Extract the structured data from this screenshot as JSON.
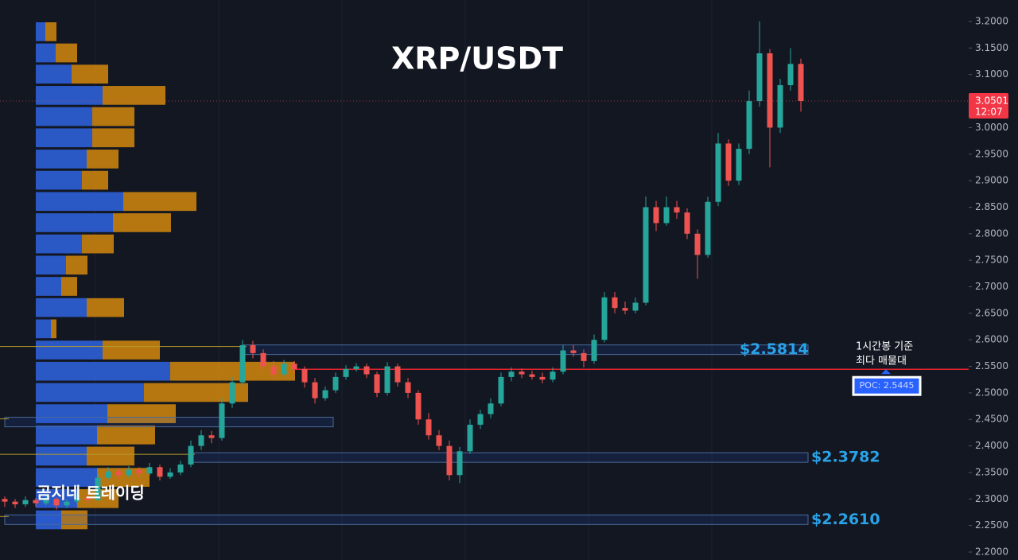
{
  "chart_data": {
    "type": "candlestick",
    "title": "XRP/USDT",
    "watermark": "곰지네 트레이딩",
    "up_color": "#26a69a",
    "down_color": "#ef5350",
    "ylim": [
      2.185,
      3.2405
    ],
    "yticks": [
      {
        "value": 3.2,
        "label": "3.2000"
      },
      {
        "value": 3.15,
        "label": "3.1500"
      },
      {
        "value": 3.1,
        "label": "3.1000"
      },
      {
        "value": 3.05,
        "label": "3.0500"
      },
      {
        "value": 3.0,
        "label": "3.0000"
      },
      {
        "value": 2.95,
        "label": "2.9500"
      },
      {
        "value": 2.9,
        "label": "2.9000"
      },
      {
        "value": 2.85,
        "label": "2.8500"
      },
      {
        "value": 2.8,
        "label": "2.8000"
      },
      {
        "value": 2.75,
        "label": "2.7500"
      },
      {
        "value": 2.7,
        "label": "2.7000"
      },
      {
        "value": 2.65,
        "label": "2.6500"
      },
      {
        "value": 2.6,
        "label": "2.6000"
      },
      {
        "value": 2.55,
        "label": "2.5500"
      },
      {
        "value": 2.5,
        "label": "2.5000"
      },
      {
        "value": 2.45,
        "label": "2.4500"
      },
      {
        "value": 2.4,
        "label": "2.4000"
      },
      {
        "value": 2.35,
        "label": "2.3500"
      },
      {
        "value": 2.3,
        "label": "2.3000"
      },
      {
        "value": 2.25,
        "label": "2.2500"
      },
      {
        "value": 2.2,
        "label": "2.2000"
      }
    ],
    "ohlc": [
      [
        2.3,
        2.305,
        2.285,
        2.295
      ],
      [
        2.295,
        2.3,
        2.283,
        2.29
      ],
      [
        2.29,
        2.305,
        2.285,
        2.298
      ],
      [
        2.298,
        2.302,
        2.285,
        2.292
      ],
      [
        2.292,
        2.308,
        2.288,
        2.3
      ],
      [
        2.3,
        2.303,
        2.28,
        2.288
      ],
      [
        2.288,
        2.3,
        2.283,
        2.295
      ],
      [
        2.295,
        2.31,
        2.29,
        2.302
      ],
      [
        2.302,
        2.31,
        2.29,
        2.298
      ],
      [
        2.298,
        2.348,
        2.295,
        2.34
      ],
      [
        2.34,
        2.36,
        2.335,
        2.352
      ],
      [
        2.352,
        2.358,
        2.338,
        2.345
      ],
      [
        2.345,
        2.362,
        2.34,
        2.355
      ],
      [
        2.355,
        2.36,
        2.34,
        2.348
      ],
      [
        2.348,
        2.368,
        2.344,
        2.36
      ],
      [
        2.36,
        2.365,
        2.335,
        2.342
      ],
      [
        2.342,
        2.358,
        2.338,
        2.35
      ],
      [
        2.35,
        2.372,
        2.345,
        2.365
      ],
      [
        2.365,
        2.41,
        2.36,
        2.4
      ],
      [
        2.4,
        2.43,
        2.392,
        2.42
      ],
      [
        2.42,
        2.428,
        2.405,
        2.415
      ],
      [
        2.415,
        2.49,
        2.41,
        2.48
      ],
      [
        2.48,
        2.53,
        2.472,
        2.52
      ],
      [
        2.52,
        2.6,
        2.515,
        2.59
      ],
      [
        2.59,
        2.598,
        2.565,
        2.575
      ],
      [
        2.575,
        2.582,
        2.54,
        2.55
      ],
      [
        2.55,
        2.56,
        2.525,
        2.535
      ],
      [
        2.535,
        2.562,
        2.53,
        2.555
      ],
      [
        2.555,
        2.56,
        2.538,
        2.545
      ],
      [
        2.545,
        2.55,
        2.51,
        2.52
      ],
      [
        2.52,
        2.528,
        2.48,
        2.49
      ],
      [
        2.49,
        2.512,
        2.485,
        2.505
      ],
      [
        2.505,
        2.538,
        2.5,
        2.53
      ],
      [
        2.53,
        2.552,
        2.525,
        2.545
      ],
      [
        2.545,
        2.556,
        2.54,
        2.55
      ],
      [
        2.55,
        2.555,
        2.528,
        2.535
      ],
      [
        2.535,
        2.54,
        2.492,
        2.5
      ],
      [
        2.5,
        2.558,
        2.495,
        2.55
      ],
      [
        2.55,
        2.555,
        2.512,
        2.52
      ],
      [
        2.52,
        2.528,
        2.49,
        2.5
      ],
      [
        2.5,
        2.505,
        2.44,
        2.45
      ],
      [
        2.45,
        2.462,
        2.412,
        2.42
      ],
      [
        2.42,
        2.43,
        2.392,
        2.4
      ],
      [
        2.4,
        2.41,
        2.335,
        2.345
      ],
      [
        2.345,
        2.398,
        2.33,
        2.39
      ],
      [
        2.39,
        2.45,
        2.385,
        2.44
      ],
      [
        2.44,
        2.468,
        2.432,
        2.46
      ],
      [
        2.46,
        2.49,
        2.452,
        2.48
      ],
      [
        2.48,
        2.538,
        2.475,
        2.53
      ],
      [
        2.53,
        2.548,
        2.522,
        2.54
      ],
      [
        2.54,
        2.546,
        2.528,
        2.535
      ],
      [
        2.535,
        2.542,
        2.525,
        2.53
      ],
      [
        2.53,
        2.538,
        2.518,
        2.525
      ],
      [
        2.525,
        2.548,
        2.52,
        2.54
      ],
      [
        2.54,
        2.59,
        2.535,
        2.58
      ],
      [
        2.58,
        2.59,
        2.568,
        2.575
      ],
      [
        2.575,
        2.582,
        2.548,
        2.56
      ],
      [
        2.56,
        2.61,
        2.555,
        2.6
      ],
      [
        2.6,
        2.69,
        2.595,
        2.68
      ],
      [
        2.68,
        2.69,
        2.65,
        2.66
      ],
      [
        2.66,
        2.672,
        2.648,
        2.655
      ],
      [
        2.655,
        2.68,
        2.65,
        2.67
      ],
      [
        2.67,
        2.87,
        2.665,
        2.85
      ],
      [
        2.85,
        2.862,
        2.805,
        2.82
      ],
      [
        2.82,
        2.87,
        2.815,
        2.85
      ],
      [
        2.85,
        2.862,
        2.828,
        2.84
      ],
      [
        2.84,
        2.848,
        2.79,
        2.8
      ],
      [
        2.8,
        2.808,
        2.715,
        2.76
      ],
      [
        2.76,
        2.87,
        2.755,
        2.86
      ],
      [
        2.86,
        2.99,
        2.852,
        2.97
      ],
      [
        2.97,
        2.978,
        2.89,
        2.9
      ],
      [
        2.9,
        2.97,
        2.892,
        2.96
      ],
      [
        2.96,
        3.07,
        2.95,
        3.05
      ],
      [
        3.05,
        3.2,
        3.04,
        3.14
      ],
      [
        3.14,
        3.148,
        2.925,
        3.0
      ],
      [
        3.0,
        3.092,
        2.99,
        3.08
      ],
      [
        3.08,
        3.15,
        3.07,
        3.12
      ],
      [
        3.12,
        3.13,
        3.03,
        3.0501
      ]
    ],
    "countdown": "12:07",
    "volume_profile": {
      "price_bins": [
        3.2,
        3.16,
        3.12,
        3.08,
        3.04,
        3.0,
        2.96,
        2.92,
        2.88,
        2.84,
        2.8,
        2.76,
        2.72,
        2.68,
        2.64,
        2.6,
        2.56,
        2.52,
        2.48,
        2.44,
        2.4,
        2.36,
        2.32,
        2.28,
        2.24
      ],
      "series": [
        {
          "name": "buy",
          "color": "#2e5fd6",
          "values": [
            12,
            25,
            45,
            84,
            71,
            71,
            64,
            58,
            110,
            97,
            58,
            38,
            32,
            64,
            19,
            84,
            169,
            136,
            90,
            77,
            64,
            77,
            52,
            32
          ]
        },
        {
          "name": "sell",
          "color": "#c98210",
          "values": [
            14,
            27,
            46,
            79,
            53,
            53,
            40,
            33,
            92,
            73,
            40,
            27,
            20,
            47,
            7,
            72,
            157,
            131,
            86,
            73,
            60,
            66,
            52,
            33
          ]
        }
      ]
    },
    "zones": [
      {
        "value": 2.5814,
        "value_label": "$2.5814",
        "from_index": 23
      },
      {
        "value": 2.445,
        "from_index": 0,
        "to_index": 31
      },
      {
        "value": 2.3782,
        "value_label": "$2.3782",
        "from_index": 18
      },
      {
        "value": 2.261,
        "value_label": "$2.2610",
        "from_index": 0
      }
    ],
    "poc": {
      "value": 2.5445,
      "label": "POC: 2.5445",
      "annotation": [
        "1시간봉 기준",
        "최다 매물대"
      ]
    }
  }
}
